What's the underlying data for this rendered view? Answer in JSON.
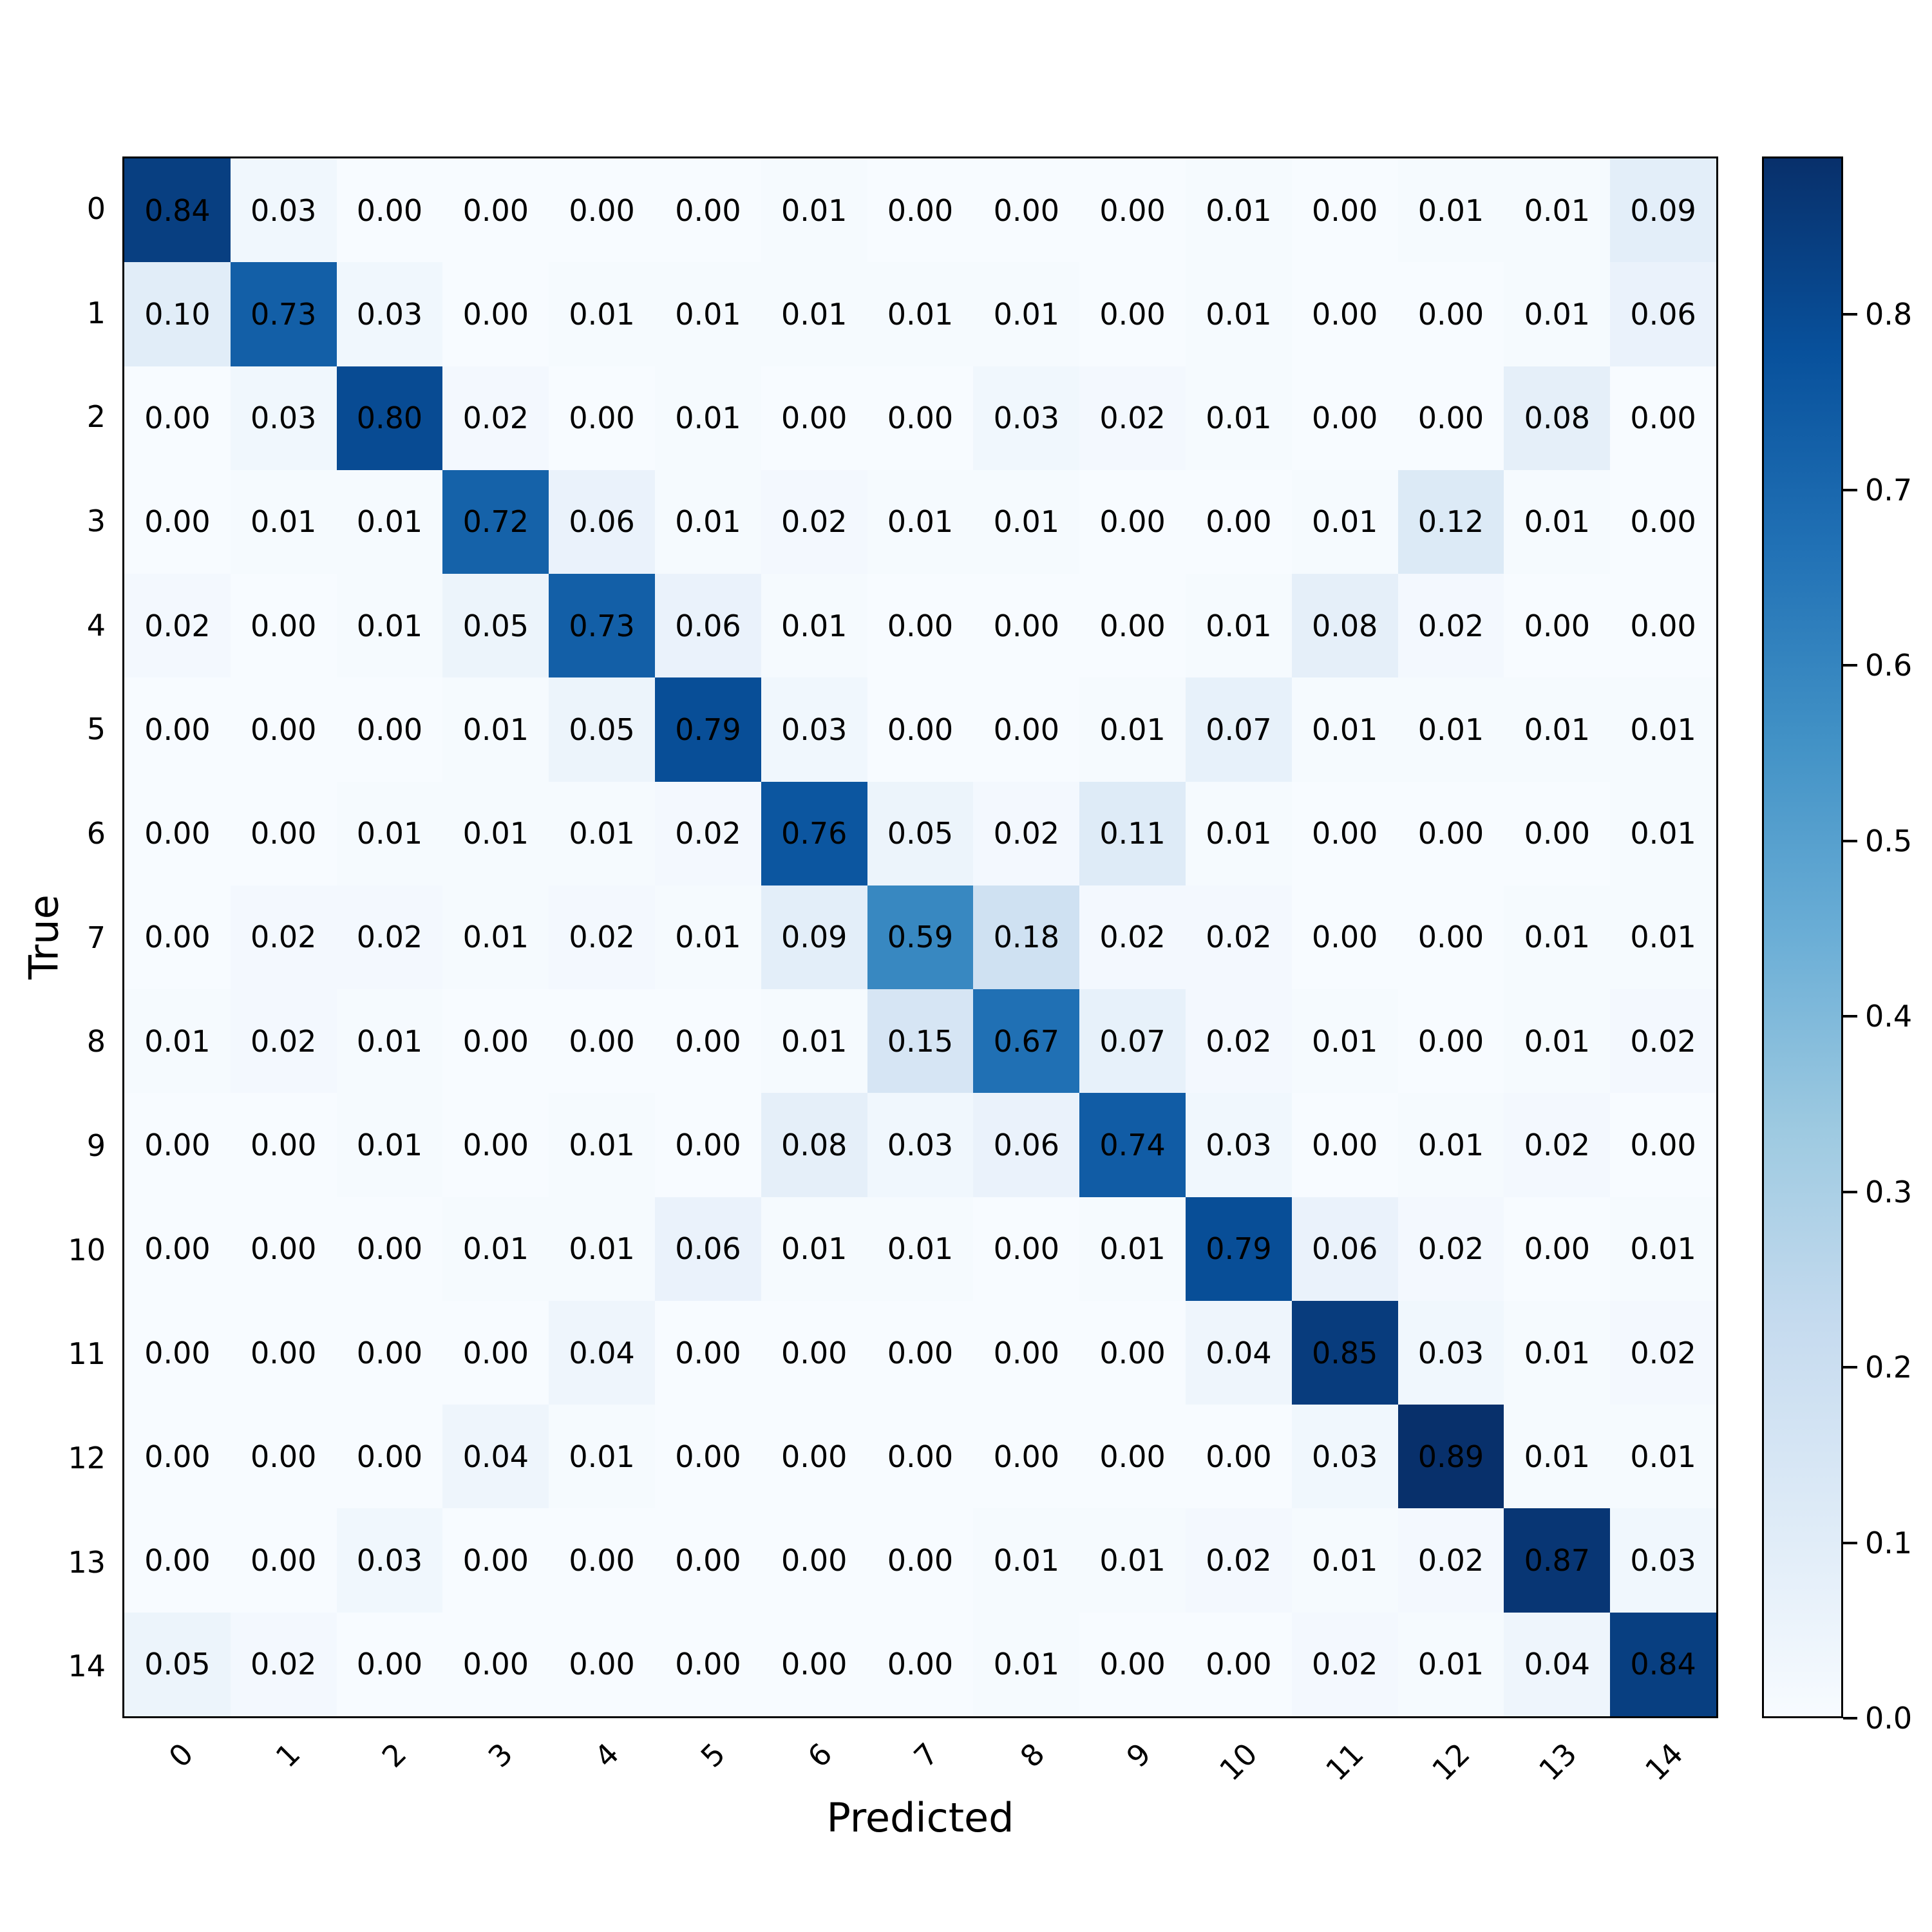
{
  "chart_data": {
    "type": "heatmap",
    "subtype": "confusion-matrix",
    "xlabel": "Predicted",
    "ylabel": "True",
    "x_tick_labels": [
      "0",
      "1",
      "2",
      "3",
      "4",
      "5",
      "6",
      "7",
      "8",
      "9",
      "10",
      "11",
      "12",
      "13",
      "14"
    ],
    "y_tick_labels": [
      "0",
      "1",
      "2",
      "3",
      "4",
      "5",
      "6",
      "7",
      "8",
      "9",
      "10",
      "11",
      "12",
      "13",
      "14"
    ],
    "value_decimals": 2,
    "matrix": [
      [
        0.84,
        0.03,
        0.0,
        0.0,
        0.0,
        0.0,
        0.01,
        0.0,
        0.0,
        0.0,
        0.01,
        0.0,
        0.01,
        0.01,
        0.09
      ],
      [
        0.1,
        0.73,
        0.03,
        0.0,
        0.01,
        0.01,
        0.01,
        0.01,
        0.01,
        0.0,
        0.01,
        0.0,
        0.0,
        0.01,
        0.06
      ],
      [
        0.0,
        0.03,
        0.8,
        0.02,
        0.0,
        0.01,
        0.0,
        0.0,
        0.03,
        0.02,
        0.01,
        0.0,
        0.0,
        0.08,
        0.0
      ],
      [
        0.0,
        0.01,
        0.01,
        0.72,
        0.06,
        0.01,
        0.02,
        0.01,
        0.01,
        0.0,
        0.0,
        0.01,
        0.12,
        0.01,
        0.0
      ],
      [
        0.02,
        0.0,
        0.01,
        0.05,
        0.73,
        0.06,
        0.01,
        0.0,
        0.0,
        0.0,
        0.01,
        0.08,
        0.02,
        0.0,
        0.0
      ],
      [
        0.0,
        0.0,
        0.0,
        0.01,
        0.05,
        0.79,
        0.03,
        0.0,
        0.0,
        0.01,
        0.07,
        0.01,
        0.01,
        0.01,
        0.01
      ],
      [
        0.0,
        0.0,
        0.01,
        0.01,
        0.01,
        0.02,
        0.76,
        0.05,
        0.02,
        0.11,
        0.01,
        0.0,
        0.0,
        0.0,
        0.01
      ],
      [
        0.0,
        0.02,
        0.02,
        0.01,
        0.02,
        0.01,
        0.09,
        0.59,
        0.18,
        0.02,
        0.02,
        0.0,
        0.0,
        0.01,
        0.01
      ],
      [
        0.01,
        0.02,
        0.01,
        0.0,
        0.0,
        0.0,
        0.01,
        0.15,
        0.67,
        0.07,
        0.02,
        0.01,
        0.0,
        0.01,
        0.02
      ],
      [
        0.0,
        0.0,
        0.01,
        0.0,
        0.01,
        0.0,
        0.08,
        0.03,
        0.06,
        0.74,
        0.03,
        0.0,
        0.01,
        0.02,
        0.0
      ],
      [
        0.0,
        0.0,
        0.0,
        0.01,
        0.01,
        0.06,
        0.01,
        0.01,
        0.0,
        0.01,
        0.79,
        0.06,
        0.02,
        0.0,
        0.01
      ],
      [
        0.0,
        0.0,
        0.0,
        0.0,
        0.04,
        0.0,
        0.0,
        0.0,
        0.0,
        0.0,
        0.04,
        0.85,
        0.03,
        0.01,
        0.02
      ],
      [
        0.0,
        0.0,
        0.0,
        0.04,
        0.01,
        0.0,
        0.0,
        0.0,
        0.0,
        0.0,
        0.0,
        0.03,
        0.89,
        0.01,
        0.01
      ],
      [
        0.0,
        0.0,
        0.03,
        0.0,
        0.0,
        0.0,
        0.0,
        0.0,
        0.01,
        0.01,
        0.02,
        0.01,
        0.02,
        0.87,
        0.03
      ],
      [
        0.05,
        0.02,
        0.0,
        0.0,
        0.0,
        0.0,
        0.0,
        0.0,
        0.01,
        0.0,
        0.0,
        0.02,
        0.01,
        0.04,
        0.84
      ]
    ],
    "vmin": 0.0,
    "vmax": 0.89,
    "colormap": "Blues",
    "colormap_stops": [
      "#f7fbff",
      "#deebf7",
      "#c6dbef",
      "#9ecae1",
      "#6baed6",
      "#4292c6",
      "#2171b5",
      "#08519c",
      "#08306b"
    ],
    "grid": false,
    "legend": false,
    "colorbar": {
      "position": "right",
      "ticks": [
        0.0,
        0.1,
        0.2,
        0.3,
        0.4,
        0.5,
        0.6,
        0.7,
        0.8
      ],
      "tick_labels": [
        "0.0",
        "0.1",
        "0.2",
        "0.3",
        "0.4",
        "0.5",
        "0.6",
        "0.7",
        "0.8"
      ]
    },
    "annotation_color": "#000000",
    "background_color": "#ffffff"
  }
}
